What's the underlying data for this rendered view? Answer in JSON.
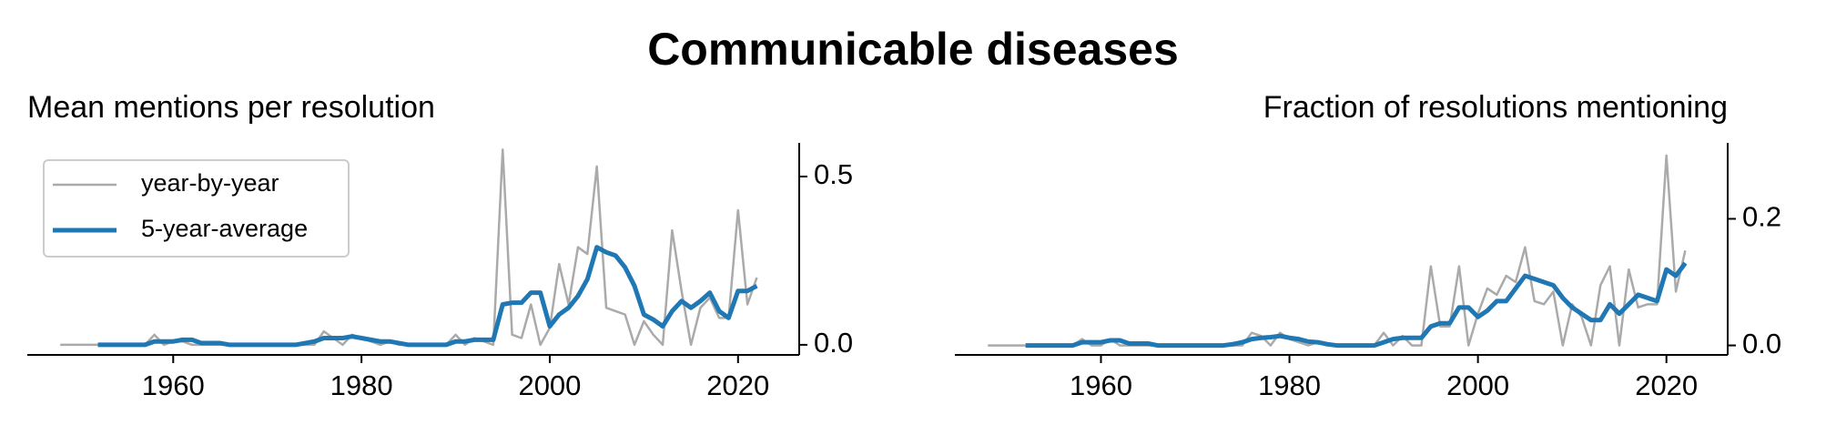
{
  "title": "Communicable diseases",
  "chart_data": [
    {
      "type": "line",
      "title": "Mean mentions per resolution",
      "x": [
        1948,
        1949,
        1950,
        1951,
        1952,
        1953,
        1954,
        1955,
        1956,
        1957,
        1958,
        1959,
        1960,
        1961,
        1962,
        1963,
        1964,
        1965,
        1966,
        1967,
        1968,
        1969,
        1970,
        1971,
        1972,
        1973,
        1974,
        1975,
        1976,
        1977,
        1978,
        1979,
        1980,
        1981,
        1982,
        1983,
        1984,
        1985,
        1986,
        1987,
        1988,
        1989,
        1990,
        1991,
        1992,
        1993,
        1994,
        1995,
        1996,
        1997,
        1998,
        1999,
        2000,
        2001,
        2002,
        2003,
        2004,
        2005,
        2006,
        2007,
        2008,
        2009,
        2010,
        2011,
        2012,
        2013,
        2014,
        2015,
        2016,
        2017,
        2018,
        2019,
        2020,
        2021,
        2022
      ],
      "series": [
        {
          "name": "year-by-year",
          "color": "#aaaaaa",
          "width": 2.5,
          "values": [
            0,
            0,
            0,
            0,
            0,
            0,
            0,
            0,
            0,
            0,
            0.03,
            0,
            0.01,
            0.01,
            0,
            0,
            0,
            0,
            0,
            0,
            0,
            0,
            0,
            0,
            0,
            0,
            0,
            0,
            0.04,
            0.02,
            0,
            0.03,
            0.02,
            0.01,
            0,
            0.01,
            0,
            0,
            0,
            0,
            0,
            0,
            0.03,
            0,
            0.02,
            0.01,
            0,
            0.58,
            0.03,
            0.02,
            0.12,
            0,
            0.05,
            0.24,
            0.12,
            0.29,
            0.27,
            0.53,
            0.11,
            0.1,
            0.09,
            0,
            0.07,
            0.03,
            0,
            0.34,
            0.16,
            0,
            0.11,
            0.14,
            0.08,
            0.08,
            0.4,
            0.12,
            0.2
          ]
        },
        {
          "name": "5-year-average",
          "color": "#1f77b4",
          "width": 5,
          "values": [
            null,
            null,
            null,
            null,
            0,
            0,
            0,
            0,
            0,
            0,
            0.01,
            0.01,
            0.01,
            0.015,
            0.015,
            0.005,
            0.005,
            0.005,
            0,
            0,
            0,
            0,
            0,
            0,
            0,
            0,
            0.005,
            0.01,
            0.02,
            0.02,
            0.02,
            0.025,
            0.02,
            0.015,
            0.01,
            0.01,
            0.005,
            0,
            0,
            0,
            0,
            0,
            0.01,
            0.01,
            0.015,
            0.015,
            0.015,
            0.12,
            0.125,
            0.125,
            0.155,
            0.155,
            0.055,
            0.09,
            0.11,
            0.145,
            0.195,
            0.29,
            0.275,
            0.265,
            0.23,
            0.175,
            0.09,
            0.075,
            0.055,
            0.1,
            0.13,
            0.11,
            0.13,
            0.155,
            0.1,
            0.08,
            0.16,
            0.16,
            0.175
          ]
        }
      ],
      "xlim": [
        1944.5,
        2026.5
      ],
      "xticks": [
        1960,
        1980,
        2000,
        2020
      ],
      "ylim": [
        -0.03,
        0.6
      ],
      "yticks": [
        {
          "value": 0,
          "label": "0.0"
        },
        0.5
      ],
      "legend": "upper left"
    },
    {
      "type": "line",
      "title": "Fraction of resolutions mentioning",
      "x": [
        1948,
        1949,
        1950,
        1951,
        1952,
        1953,
        1954,
        1955,
        1956,
        1957,
        1958,
        1959,
        1960,
        1961,
        1962,
        1963,
        1964,
        1965,
        1966,
        1967,
        1968,
        1969,
        1970,
        1971,
        1972,
        1973,
        1974,
        1975,
        1976,
        1977,
        1978,
        1979,
        1980,
        1981,
        1982,
        1983,
        1984,
        1985,
        1986,
        1987,
        1988,
        1989,
        1990,
        1991,
        1992,
        1993,
        1994,
        1995,
        1996,
        1997,
        1998,
        1999,
        2000,
        2001,
        2002,
        2003,
        2004,
        2005,
        2006,
        2007,
        2008,
        2009,
        2010,
        2011,
        2012,
        2013,
        2014,
        2015,
        2016,
        2017,
        2018,
        2019,
        2020,
        2021,
        2022
      ],
      "series": [
        {
          "color": "#aaaaaa",
          "width": 2.5,
          "values": [
            0,
            0,
            0,
            0,
            0,
            0,
            0,
            0,
            0,
            0,
            0.01,
            0,
            0,
            0.01,
            0,
            0,
            0,
            0,
            0,
            0,
            0,
            0,
            0,
            0,
            0,
            0,
            0,
            0,
            0.02,
            0.015,
            0,
            0.02,
            0.01,
            0.005,
            0,
            0.005,
            0,
            0,
            0,
            0,
            0,
            0,
            0.02,
            0,
            0.015,
            0,
            0,
            0.125,
            0.03,
            0.03,
            0.125,
            0,
            0.05,
            0.09,
            0.08,
            0.11,
            0.1,
            0.155,
            0.07,
            0.065,
            0.085,
            0,
            0.065,
            0.045,
            0,
            0.095,
            0.125,
            0,
            0.12,
            0.06,
            0.065,
            0.065,
            0.3,
            0.085,
            0.15
          ]
        },
        {
          "color": "#1f77b4",
          "width": 5,
          "values": [
            null,
            null,
            null,
            null,
            0,
            0,
            0,
            0,
            0,
            0,
            0.005,
            0.005,
            0.005,
            0.008,
            0.008,
            0.003,
            0.003,
            0.003,
            0,
            0,
            0,
            0,
            0,
            0,
            0,
            0,
            0.002,
            0.005,
            0.01,
            0.012,
            0.013,
            0.015,
            0.012,
            0.01,
            0.006,
            0.005,
            0.002,
            0,
            0,
            0,
            0,
            0,
            0.005,
            0.01,
            0.012,
            0.012,
            0.012,
            0.03,
            0.035,
            0.035,
            0.06,
            0.06,
            0.045,
            0.055,
            0.07,
            0.07,
            0.09,
            0.11,
            0.105,
            0.1,
            0.095,
            0.075,
            0.06,
            0.05,
            0.04,
            0.04,
            0.065,
            0.05,
            0.065,
            0.08,
            0.075,
            0.07,
            0.12,
            0.11,
            0.13
          ]
        }
      ],
      "xlim": [
        1944.5,
        2026.5
      ],
      "xticks": [
        1960,
        1980,
        2000,
        2020
      ],
      "ylim": [
        -0.015,
        0.32
      ],
      "yticks": [
        {
          "value": 0,
          "label": "0.0"
        },
        0.2
      ]
    }
  ]
}
